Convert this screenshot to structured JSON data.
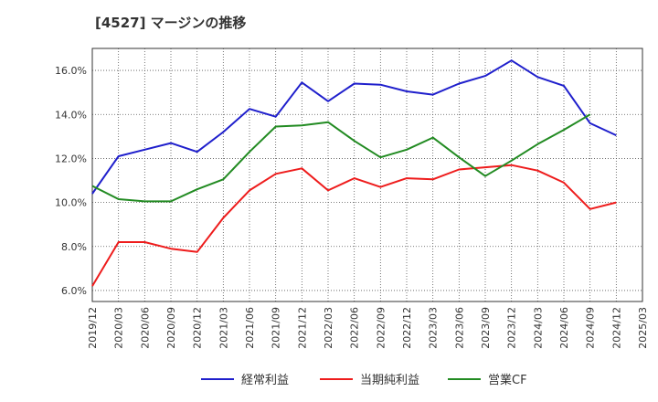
{
  "chart_data": {
    "type": "line",
    "title": "[4527]  マージンの推移",
    "x": [
      "2019/12",
      "2020/03",
      "2020/06",
      "2020/09",
      "2020/12",
      "2021/03",
      "2021/06",
      "2021/09",
      "2021/12",
      "2022/03",
      "2022/06",
      "2022/09",
      "2022/12",
      "2023/03",
      "2023/06",
      "2023/09",
      "2023/12",
      "2024/03",
      "2024/06",
      "2024/09",
      "2024/12",
      "2025/03"
    ],
    "yticks": [
      "6.0%",
      "8.0%",
      "10.0%",
      "12.0%",
      "14.0%",
      "16.0%"
    ],
    "ytick_values": [
      6,
      8,
      10,
      12,
      14,
      16
    ],
    "ylim": [
      5.5,
      17.0
    ],
    "grid": true,
    "legend_position": "bottom",
    "series": [
      {
        "name": "経常利益",
        "color": "#1f1fcc",
        "values": [
          10.4,
          12.1,
          12.4,
          12.7,
          12.3,
          13.2,
          14.25,
          13.9,
          15.45,
          14.6,
          15.4,
          15.35,
          15.05,
          14.9,
          15.4,
          15.75,
          16.45,
          15.7,
          15.3,
          13.6,
          13.05,
          null
        ]
      },
      {
        "name": "当期純利益",
        "color": "#ee1c1c",
        "values": [
          6.2,
          8.2,
          8.2,
          7.9,
          7.75,
          9.3,
          10.55,
          11.3,
          11.55,
          10.55,
          11.1,
          10.7,
          11.1,
          11.05,
          11.5,
          11.6,
          11.7,
          11.45,
          10.9,
          9.7,
          10.0,
          null
        ]
      },
      {
        "name": "営業CF",
        "color": "#228b22",
        "values": [
          10.75,
          10.15,
          10.05,
          10.05,
          10.6,
          11.05,
          12.3,
          13.45,
          13.5,
          13.65,
          12.8,
          12.05,
          12.4,
          12.95,
          12.05,
          11.2,
          11.9,
          12.65,
          13.3,
          14.0,
          null,
          null
        ]
      }
    ]
  }
}
